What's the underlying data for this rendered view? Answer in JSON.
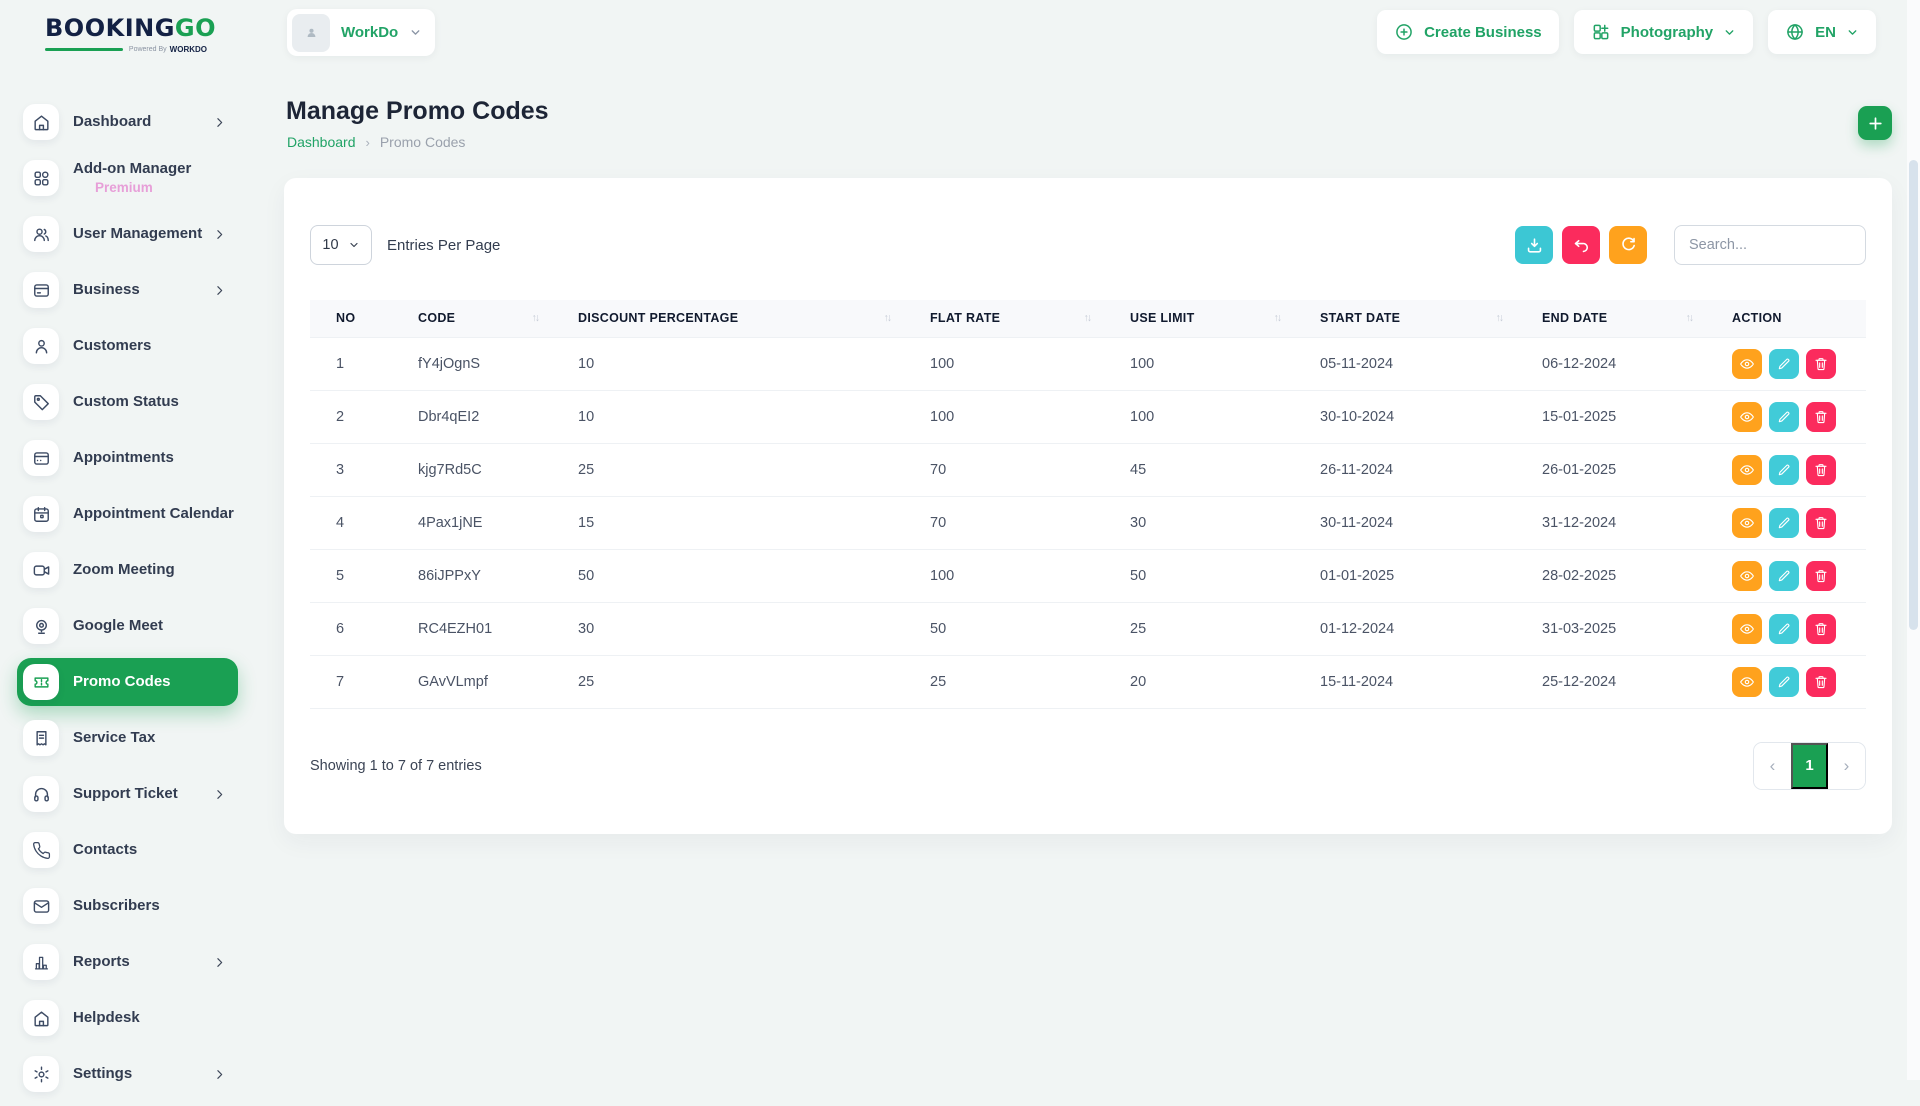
{
  "brand": {
    "title_primary": "BOOKING",
    "title_accent": "GO",
    "powered_by": "Powered By",
    "powered_brand": "WORKDO"
  },
  "header": {
    "workspace_label": "WorkDo",
    "create_business_label": "Create Business",
    "business_type_label": "Photography",
    "language_label": "EN"
  },
  "sidebar": {
    "items": [
      {
        "label": "Dashboard",
        "icon": "home",
        "chevron": true,
        "active": false
      },
      {
        "label": "Add-on Manager",
        "badge": "Premium",
        "icon": "grid",
        "chevron": false,
        "active": false
      },
      {
        "label": "User Management",
        "icon": "users",
        "chevron": true,
        "active": false
      },
      {
        "label": "Business",
        "icon": "card",
        "chevron": true,
        "active": false
      },
      {
        "label": "Customers",
        "icon": "user",
        "chevron": false,
        "active": false
      },
      {
        "label": "Custom Status",
        "icon": "tag",
        "chevron": false,
        "active": false
      },
      {
        "label": "Appointments",
        "icon": "card2",
        "chevron": false,
        "active": false
      },
      {
        "label": "Appointment Calendar",
        "icon": "calendar",
        "chevron": false,
        "active": false
      },
      {
        "label": "Zoom Meeting",
        "icon": "video",
        "chevron": false,
        "active": false
      },
      {
        "label": "Google Meet",
        "icon": "webcam",
        "chevron": false,
        "active": false
      },
      {
        "label": "Promo Codes",
        "icon": "ticket",
        "chevron": false,
        "active": true
      },
      {
        "label": "Service Tax",
        "icon": "receipt",
        "chevron": false,
        "active": false
      },
      {
        "label": "Support Ticket",
        "icon": "headset",
        "chevron": true,
        "active": false
      },
      {
        "label": "Contacts",
        "icon": "phone",
        "chevron": false,
        "active": false
      },
      {
        "label": "Subscribers",
        "icon": "mail",
        "chevron": false,
        "active": false
      },
      {
        "label": "Reports",
        "icon": "chart",
        "chevron": true,
        "active": false
      },
      {
        "label": "Helpdesk",
        "icon": "home",
        "chevron": false,
        "active": false
      },
      {
        "label": "Settings",
        "icon": "gear",
        "chevron": true,
        "active": false
      }
    ]
  },
  "page": {
    "title": "Manage Promo Codes",
    "breadcrumb_home": "Dashboard",
    "breadcrumb_separator": "›",
    "breadcrumb_current": "Promo Codes"
  },
  "toolbar": {
    "entries_value": "10",
    "entries_label": "Entries Per Page",
    "search_placeholder": "Search..."
  },
  "table": {
    "columns": [
      {
        "label": "NO",
        "sortable": false
      },
      {
        "label": "CODE",
        "sortable": true
      },
      {
        "label": "DISCOUNT PERCENTAGE",
        "sortable": true
      },
      {
        "label": "FLAT RATE",
        "sortable": true
      },
      {
        "label": "USE LIMIT",
        "sortable": true
      },
      {
        "label": "START DATE",
        "sortable": true
      },
      {
        "label": "END DATE",
        "sortable": true
      },
      {
        "label": "ACTION",
        "sortable": false
      }
    ],
    "rows": [
      {
        "no": "1",
        "code": "fY4jOgnS",
        "discount": "10",
        "flat_rate": "100",
        "use_limit": "100",
        "start_date": "05-11-2024",
        "end_date": "06-12-2024"
      },
      {
        "no": "2",
        "code": "Dbr4qEI2",
        "discount": "10",
        "flat_rate": "100",
        "use_limit": "100",
        "start_date": "30-10-2024",
        "end_date": "15-01-2025"
      },
      {
        "no": "3",
        "code": "kjg7Rd5C",
        "discount": "25",
        "flat_rate": "70",
        "use_limit": "45",
        "start_date": "26-11-2024",
        "end_date": "26-01-2025"
      },
      {
        "no": "4",
        "code": "4Pax1jNE",
        "discount": "15",
        "flat_rate": "70",
        "use_limit": "30",
        "start_date": "30-11-2024",
        "end_date": "31-12-2024"
      },
      {
        "no": "5",
        "code": "86iJPPxY",
        "discount": "50",
        "flat_rate": "100",
        "use_limit": "50",
        "start_date": "01-01-2025",
        "end_date": "28-02-2025"
      },
      {
        "no": "6",
        "code": "RC4EZH01",
        "discount": "30",
        "flat_rate": "50",
        "use_limit": "25",
        "start_date": "01-12-2024",
        "end_date": "31-03-2025"
      },
      {
        "no": "7",
        "code": "GAvVLmpf",
        "discount": "25",
        "flat_rate": "25",
        "use_limit": "20",
        "start_date": "15-11-2024",
        "end_date": "25-12-2024"
      }
    ]
  },
  "pagination": {
    "summary": "Showing 1 to 7 of 7 entries",
    "current_page": "1"
  },
  "colors": {
    "primary_green": "#1aa053",
    "link_green": "#21a366",
    "navy": "#132144",
    "orange": "#ffa21d",
    "teal": "#3cc7d4",
    "pink": "#fb2b5d",
    "premium_pink": "#e79fd8"
  }
}
